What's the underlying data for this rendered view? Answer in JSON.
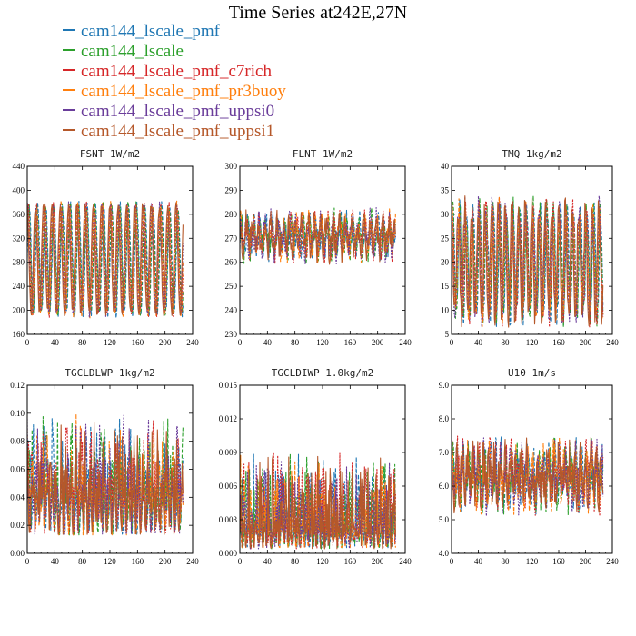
{
  "title": "Time Series at242E,27N",
  "legend": [
    {
      "label": "cam144_lscale_pmf",
      "color": "#1f77b4"
    },
    {
      "label": "cam144_lscale",
      "color": "#2ca02c"
    },
    {
      "label": "cam144_lscale_pmf_c7rich",
      "color": "#d62728"
    },
    {
      "label": "cam144_lscale_pmf_pr3buoy",
      "color": "#ff7f0e"
    },
    {
      "label": "cam144_lscale_pmf_uppsi0",
      "color": "#6a3d9a"
    },
    {
      "label": "cam144_lscale_pmf_uppsi1",
      "color": "#b5582a"
    }
  ],
  "chart_data": [
    {
      "type": "line",
      "variable": "FSNT",
      "unit": "1W/m2",
      "xlim": [
        0,
        240
      ],
      "ylim": [
        160,
        440
      ],
      "xticks": [
        "0",
        "40",
        "80",
        "120",
        "160",
        "200",
        "240"
      ],
      "yticks": [
        "160",
        "200",
        "240",
        "280",
        "320",
        "360",
        "400",
        "440"
      ],
      "behavior": {
        "kind": "cycle",
        "base": 285,
        "amp": 90,
        "period": 12,
        "noise": 8
      },
      "series": [
        {
          "name": "cam144_lscale_pmf"
        },
        {
          "name": "cam144_lscale"
        },
        {
          "name": "cam144_lscale_pmf_c7rich"
        },
        {
          "name": "cam144_lscale_pmf_pr3buoy"
        },
        {
          "name": "cam144_lscale_pmf_uppsi0"
        },
        {
          "name": "cam144_lscale_pmf_uppsi1"
        }
      ]
    },
    {
      "type": "line",
      "variable": "FLNT",
      "unit": "1W/m2",
      "xlim": [
        0,
        240
      ],
      "ylim": [
        230,
        300
      ],
      "xticks": [
        "0",
        "40",
        "80",
        "120",
        "160",
        "200",
        "240"
      ],
      "yticks": [
        "230",
        "240",
        "250",
        "260",
        "270",
        "280",
        "290",
        "300"
      ],
      "behavior": {
        "kind": "noisy",
        "base": 271,
        "amp": 6,
        "period": 9,
        "noise": 6
      },
      "series": [
        {
          "name": "cam144_lscale_pmf"
        },
        {
          "name": "cam144_lscale"
        },
        {
          "name": "cam144_lscale_pmf_c7rich"
        },
        {
          "name": "cam144_lscale_pmf_pr3buoy"
        },
        {
          "name": "cam144_lscale_pmf_uppsi0"
        },
        {
          "name": "cam144_lscale_pmf_uppsi1"
        }
      ]
    },
    {
      "type": "line",
      "variable": "TMQ",
      "unit": "1kg/m2",
      "xlim": [
        0,
        240
      ],
      "ylim": [
        5,
        40
      ],
      "xticks": [
        "0",
        "40",
        "80",
        "120",
        "160",
        "200",
        "240"
      ],
      "yticks": [
        "5",
        "10",
        "15",
        "20",
        "25",
        "30",
        "35",
        "40"
      ],
      "behavior": {
        "kind": "cycle",
        "base": 20,
        "amp": 11,
        "period": 10,
        "noise": 3
      },
      "series": [
        {
          "name": "cam144_lscale_pmf"
        },
        {
          "name": "cam144_lscale"
        },
        {
          "name": "cam144_lscale_pmf_c7rich"
        },
        {
          "name": "cam144_lscale_pmf_pr3buoy"
        },
        {
          "name": "cam144_lscale_pmf_uppsi0"
        },
        {
          "name": "cam144_lscale_pmf_uppsi1"
        }
      ]
    },
    {
      "type": "line",
      "variable": "TGCLDLWP",
      "unit": "1kg/m2",
      "xlim": [
        0,
        240
      ],
      "ylim": [
        0,
        0.12
      ],
      "xticks": [
        "0",
        "40",
        "80",
        "120",
        "160",
        "200",
        "240"
      ],
      "yticks": [
        "0.00",
        "0.02",
        "0.04",
        "0.06",
        "0.08",
        "0.10",
        "0.12"
      ],
      "behavior": {
        "kind": "spiky",
        "base": 0.028,
        "amp": 0.015,
        "period": 7,
        "noise": 0.018
      },
      "series": [
        {
          "name": "cam144_lscale_pmf"
        },
        {
          "name": "cam144_lscale"
        },
        {
          "name": "cam144_lscale_pmf_c7rich"
        },
        {
          "name": "cam144_lscale_pmf_pr3buoy"
        },
        {
          "name": "cam144_lscale_pmf_uppsi0"
        },
        {
          "name": "cam144_lscale_pmf_uppsi1"
        }
      ]
    },
    {
      "type": "line",
      "variable": "TGCLDIWP",
      "unit": "1.0kg/m2",
      "xlim": [
        0,
        240
      ],
      "ylim": [
        0,
        0.015
      ],
      "xticks": [
        "0",
        "40",
        "80",
        "120",
        "160",
        "200",
        "240"
      ],
      "yticks": [
        "0.000",
        "0.003",
        "0.006",
        "0.009",
        "0.012",
        "0.015"
      ],
      "behavior": {
        "kind": "spiky",
        "base": 0.0012,
        "amp": 0.0008,
        "period": 6,
        "noise": 0.0022
      },
      "series": [
        {
          "name": "cam144_lscale_pmf"
        },
        {
          "name": "cam144_lscale"
        },
        {
          "name": "cam144_lscale_pmf_c7rich"
        },
        {
          "name": "cam144_lscale_pmf_pr3buoy"
        },
        {
          "name": "cam144_lscale_pmf_uppsi0"
        },
        {
          "name": "cam144_lscale_pmf_uppsi1"
        }
      ]
    },
    {
      "type": "line",
      "variable": "U10",
      "unit": "1m/s",
      "xlim": [
        0,
        240
      ],
      "ylim": [
        4,
        9
      ],
      "xticks": [
        "0",
        "40",
        "80",
        "120",
        "160",
        "200",
        "240"
      ],
      "yticks": [
        "4.0",
        "5.0",
        "6.0",
        "7.0",
        "8.0",
        "9.0"
      ],
      "behavior": {
        "kind": "noisy",
        "base": 6.3,
        "amp": 0.5,
        "period": 8,
        "noise": 0.7
      },
      "series": [
        {
          "name": "cam144_lscale_pmf"
        },
        {
          "name": "cam144_lscale"
        },
        {
          "name": "cam144_lscale_pmf_c7rich"
        },
        {
          "name": "cam144_lscale_pmf_pr3buoy"
        },
        {
          "name": "cam144_lscale_pmf_uppsi0"
        },
        {
          "name": "cam144_lscale_pmf_uppsi1"
        }
      ]
    }
  ]
}
